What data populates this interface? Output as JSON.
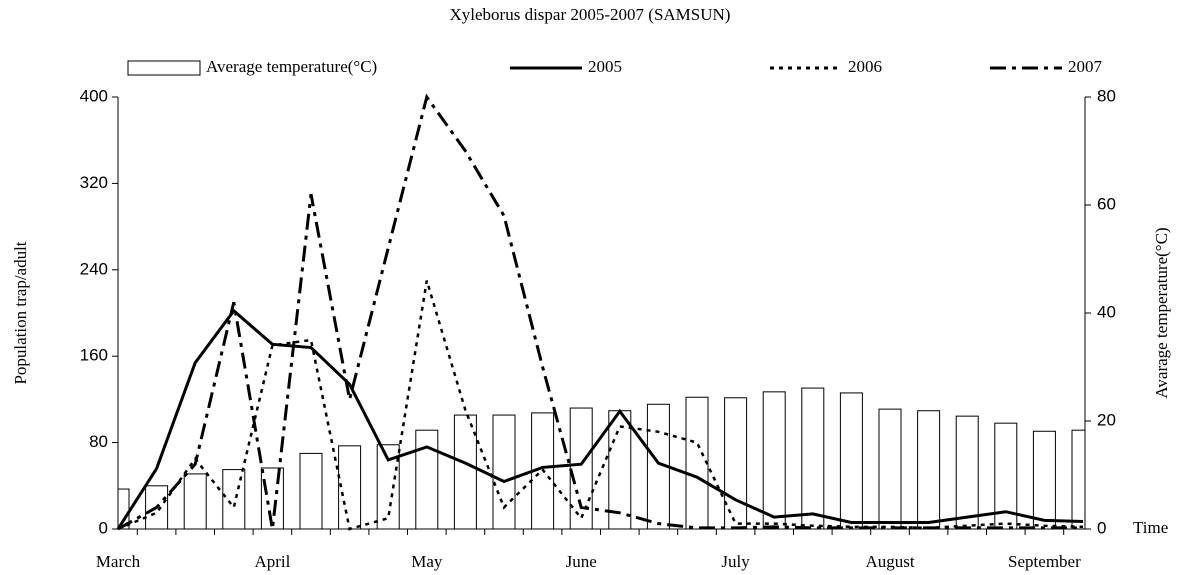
{
  "chart_data": {
    "type": "bar_line",
    "title": "Xyleborus dispar 2005-2007 (SAMSUN)",
    "ylabel": "Population trap/adult",
    "y2label": "Avarage temperature(°C)",
    "xlabel": "Time",
    "categories": [
      "March",
      null,
      null,
      null,
      "April",
      null,
      null,
      null,
      "May",
      null,
      null,
      null,
      "June",
      null,
      null,
      null,
      "July",
      null,
      null,
      null,
      "August",
      null,
      null,
      null,
      "September",
      null
    ],
    "series": [
      {
        "name": "Average temperature(°C)",
        "kind": "bar",
        "axis": "y2",
        "color": "#ffffff",
        "edge": "#000000",
        "values": [
          7.4,
          8,
          10.2,
          11,
          11.3,
          14,
          15.4,
          15.6,
          18.3,
          21.1,
          21.1,
          21.5,
          22.4,
          21.9,
          23.1,
          24.4,
          24.3,
          25.4,
          26.1,
          25.2,
          22.2,
          21.9,
          20.9,
          19.6,
          18.1,
          18.3
        ]
      },
      {
        "name": "2005",
        "kind": "line",
        "style": "solid",
        "color": "#000000",
        "values": [
          0,
          56,
          154,
          202,
          171,
          168,
          134,
          64,
          76,
          61,
          44,
          57,
          60,
          109,
          61,
          48,
          27,
          11,
          14,
          6,
          6,
          6,
          11,
          16,
          8,
          7
        ]
      },
      {
        "name": "2006",
        "kind": "line",
        "style": "dotted",
        "color": "#000000",
        "values": [
          0,
          15,
          65,
          20,
          170,
          175,
          0,
          10,
          230,
          110,
          20,
          55,
          10,
          95,
          90,
          80,
          5,
          5,
          3,
          2,
          2,
          1,
          3,
          5,
          3,
          2
        ]
      },
      {
        "name": "2007",
        "kind": "line",
        "style": "dashdot",
        "color": "#000000",
        "values": [
          0,
          20,
          60,
          210,
          0,
          310,
          120,
          260,
          400,
          350,
          290,
          150,
          20,
          15,
          5,
          1,
          1,
          2,
          1,
          1,
          1,
          1,
          1,
          1,
          1,
          1
        ]
      }
    ],
    "ylim": [
      0,
      400
    ],
    "yticks": [
      0,
      80,
      160,
      240,
      320,
      400
    ],
    "y2lim": [
      0,
      80
    ],
    "y2ticks": [
      0,
      20,
      40,
      60,
      80
    ],
    "legend": "top"
  }
}
